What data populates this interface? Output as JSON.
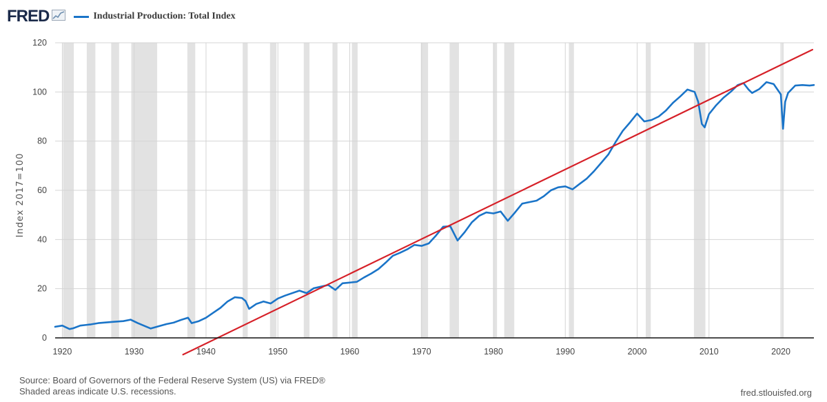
{
  "header": {
    "logo": "FRED",
    "logo_mark": "chart-trend-icon"
  },
  "chart_data": {
    "type": "line",
    "title": "Industrial Production: Total Index",
    "ylabel": "Index 2017=100",
    "xlabel": "",
    "xlim": [
      1919,
      2024.6
    ],
    "ylim": [
      0,
      120
    ],
    "x_ticks": [
      1920,
      1930,
      1940,
      1950,
      1960,
      1970,
      1980,
      1990,
      2000,
      2010,
      2020
    ],
    "y_ticks": [
      0,
      20,
      40,
      60,
      80,
      100,
      120
    ],
    "grid": true,
    "series": [
      {
        "name": "Industrial Production: Total Index",
        "color": "#1a74c8",
        "x": [
          1919.0,
          1920.0,
          1921.0,
          1921.5,
          1922.5,
          1924.0,
          1925.0,
          1927.0,
          1928.5,
          1929.5,
          1930.5,
          1931.5,
          1932.3,
          1933.5,
          1934.5,
          1935.5,
          1936.5,
          1937.5,
          1938.0,
          1939.0,
          1940.0,
          1941.0,
          1942.0,
          1943.0,
          1944.0,
          1945.0,
          1945.5,
          1946.0,
          1947.0,
          1948.0,
          1949.0,
          1950.0,
          1951.0,
          1953.0,
          1954.0,
          1955.0,
          1957.0,
          1958.0,
          1959.0,
          1960.0,
          1961.0,
          1962.0,
          1963.0,
          1964.0,
          1965.0,
          1966.0,
          1967.0,
          1968.0,
          1969.0,
          1970.0,
          1971.0,
          1972.0,
          1973.0,
          1974.0,
          1975.0,
          1976.0,
          1977.0,
          1978.0,
          1979.0,
          1980.0,
          1981.0,
          1982.0,
          1983.0,
          1984.0,
          1985.0,
          1986.0,
          1987.0,
          1988.0,
          1989.0,
          1990.0,
          1991.0,
          1992.0,
          1993.0,
          1994.0,
          1995.0,
          1996.0,
          1997.0,
          1998.0,
          1999.0,
          2000.0,
          2001.0,
          2002.0,
          2003.0,
          2004.0,
          2005.0,
          2006.0,
          2007.0,
          2008.0,
          2008.5,
          2009.0,
          2009.4,
          2010.0,
          2011.0,
          2012.0,
          2013.0,
          2014.0,
          2014.8,
          2015.5,
          2016.0,
          2017.0,
          2018.0,
          2019.0,
          2020.0,
          2020.3,
          2020.6,
          2021.0,
          2022.0,
          2023.0,
          2024.0,
          2024.6
        ],
        "values": [
          4.5,
          5.0,
          3.6,
          3.9,
          5.0,
          5.5,
          6.0,
          6.5,
          6.8,
          7.4,
          6.0,
          4.8,
          3.8,
          4.8,
          5.6,
          6.2,
          7.3,
          8.2,
          6.0,
          6.8,
          8.2,
          10.2,
          12.2,
          14.8,
          16.5,
          16.2,
          15.0,
          11.8,
          13.8,
          14.8,
          14.0,
          16.0,
          17.2,
          19.2,
          18.2,
          20.2,
          21.5,
          19.5,
          22.2,
          22.5,
          22.8,
          24.6,
          26.2,
          28.0,
          30.6,
          33.4,
          34.6,
          36.0,
          37.8,
          37.4,
          38.4,
          41.6,
          45.2,
          45.4,
          39.6,
          43.0,
          47.0,
          49.6,
          51.0,
          50.6,
          51.4,
          47.6,
          51.0,
          54.6,
          55.2,
          55.8,
          57.6,
          60.0,
          61.2,
          61.6,
          60.4,
          62.6,
          64.8,
          67.8,
          71.2,
          74.6,
          79.6,
          84.2,
          87.6,
          91.2,
          88.0,
          88.6,
          90.0,
          92.4,
          95.6,
          98.2,
          101.0,
          100.0,
          96.0,
          87.0,
          85.6,
          91.0,
          94.6,
          97.6,
          100.0,
          102.8,
          103.6,
          101.0,
          99.6,
          101.2,
          104.0,
          103.2,
          99.0,
          85.0,
          96.0,
          99.6,
          102.6,
          102.8,
          102.6,
          102.8
        ]
      },
      {
        "name": "Trend line",
        "color": "#d62028",
        "x": [
          1936.8,
          2024.4
        ],
        "values": [
          -6.8,
          117.2
        ]
      }
    ],
    "recessions": [
      [
        1920.1,
        1921.6
      ],
      [
        1923.4,
        1924.6
      ],
      [
        1926.8,
        1927.9
      ],
      [
        1929.6,
        1933.2
      ],
      [
        1937.4,
        1938.5
      ],
      [
        1945.1,
        1945.8
      ],
      [
        1948.9,
        1949.8
      ],
      [
        1953.6,
        1954.4
      ],
      [
        1957.6,
        1958.3
      ],
      [
        1960.3,
        1961.1
      ],
      [
        1969.9,
        1970.9
      ],
      [
        1973.9,
        1975.2
      ],
      [
        1980.0,
        1980.5
      ],
      [
        1981.5,
        1982.9
      ],
      [
        1990.5,
        1991.2
      ],
      [
        2001.2,
        2001.9
      ],
      [
        2007.9,
        2009.5
      ],
      [
        2020.1,
        2020.4
      ]
    ]
  },
  "footer": {
    "source": "Source: Board of Governors of the Federal Reserve System (US) via FRED®",
    "note": "Shaded areas indicate U.S. recessions.",
    "url": "fred.stlouisfed.org"
  }
}
